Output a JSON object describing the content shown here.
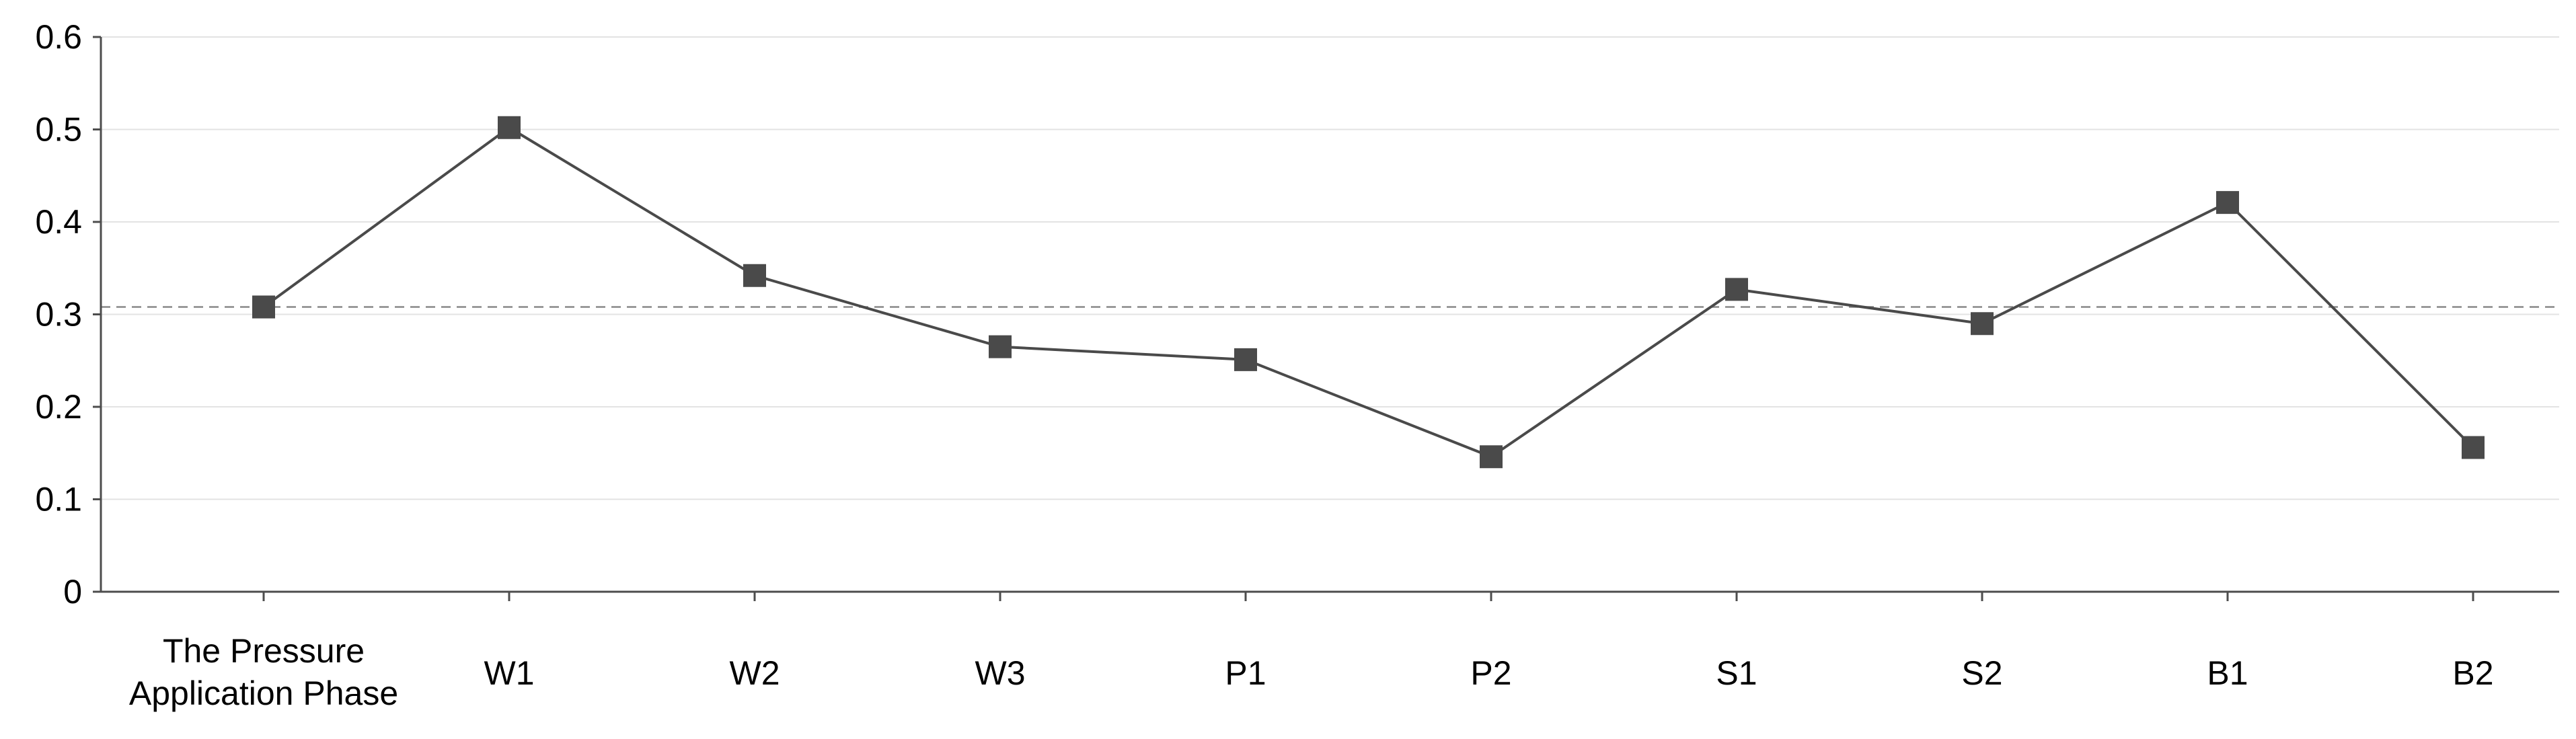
{
  "chart_data": {
    "type": "line",
    "title": "",
    "xlabel": "",
    "ylabel": "",
    "categories": [
      [
        "The Pressure",
        "Application Phase"
      ],
      [
        "W1"
      ],
      [
        "W2"
      ],
      [
        "W3"
      ],
      [
        "P1"
      ],
      [
        "P2"
      ],
      [
        "S1"
      ],
      [
        "S2"
      ],
      [
        "B1"
      ],
      [
        "B2"
      ]
    ],
    "series": [
      {
        "values": [
          0.308,
          0.502,
          0.342,
          0.265,
          0.251,
          0.146,
          0.327,
          0.29,
          0.421,
          0.156
        ],
        "color": "#4a4a4a",
        "marker": "square"
      }
    ],
    "reference_line": {
      "value": 0.308,
      "style": "dashed",
      "color": "#888888"
    },
    "ylim": [
      0,
      0.6
    ],
    "yticks": [
      "0",
      "0.1",
      "0.2",
      "0.3",
      "0.4",
      "0.5",
      "0.6"
    ],
    "grid": "horizontal",
    "legend": "none"
  }
}
